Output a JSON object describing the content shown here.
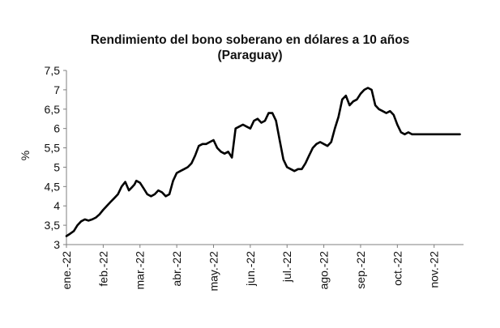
{
  "chart_data": {
    "type": "line",
    "title_line1": "Rendimiento del bono soberano en dólares a 10 años",
    "title_line2": "(Paraguay)",
    "ylabel": "%",
    "ylim": [
      3,
      7.5
    ],
    "yticks": [
      "3",
      "3,5",
      "4",
      "4,5",
      "5",
      "5,5",
      "6",
      "6,5",
      "7",
      "7,5"
    ],
    "xticks": [
      "ene.-22",
      "feb.-22",
      "mar.-22",
      "abr.-22",
      "may.-22",
      "jun.-22",
      "jul.-22",
      "ago.-22",
      "sep.-22",
      "oct.-22",
      "nov.-22"
    ],
    "line_color": "#000000",
    "series": [
      {
        "x": [
          0,
          0.1,
          0.2,
          0.3,
          0.4,
          0.5,
          0.6,
          0.7,
          0.8,
          0.9,
          1.0,
          1.1,
          1.2,
          1.3,
          1.4,
          1.5,
          1.6,
          1.7,
          1.8,
          1.85,
          1.9,
          2.0,
          2.1,
          2.2,
          2.3,
          2.4,
          2.5,
          2.6,
          2.7,
          2.8,
          2.9,
          3.0,
          3.1,
          3.2,
          3.3,
          3.4,
          3.5,
          3.6,
          3.7,
          3.8,
          3.9,
          4.0,
          4.1,
          4.2,
          4.3,
          4.4,
          4.5,
          4.6,
          4.7,
          4.8,
          4.9,
          5.0,
          5.1,
          5.2,
          5.3,
          5.4,
          5.5,
          5.6,
          5.7,
          5.8,
          5.9,
          6.0,
          6.1,
          6.2,
          6.3,
          6.4,
          6.5,
          6.6,
          6.7,
          6.8,
          6.9,
          7.0,
          7.1,
          7.2,
          7.3,
          7.4,
          7.5,
          7.6,
          7.7,
          7.8,
          7.9,
          8.0,
          8.1,
          8.2,
          8.3,
          8.4,
          8.5,
          8.6,
          8.7,
          8.8,
          8.9,
          9.0,
          9.1,
          9.2,
          9.3,
          9.4,
          9.5,
          9.6,
          9.7,
          9.8,
          9.9,
          10.0,
          10.1,
          10.2,
          10.3,
          10.4,
          10.5,
          10.6,
          10.7
        ],
        "values": [
          3.22,
          3.28,
          3.35,
          3.5,
          3.6,
          3.65,
          3.62,
          3.65,
          3.7,
          3.78,
          3.9,
          4.0,
          4.1,
          4.2,
          4.3,
          4.5,
          4.62,
          4.4,
          4.5,
          4.55,
          4.65,
          4.6,
          4.45,
          4.3,
          4.25,
          4.3,
          4.4,
          4.35,
          4.25,
          4.3,
          4.65,
          4.85,
          4.9,
          4.95,
          5.0,
          5.1,
          5.3,
          5.55,
          5.6,
          5.6,
          5.65,
          5.7,
          5.5,
          5.4,
          5.35,
          5.4,
          5.25,
          6.0,
          6.05,
          6.1,
          6.05,
          6.0,
          6.2,
          6.25,
          6.15,
          6.2,
          6.4,
          6.4,
          6.2,
          5.7,
          5.2,
          5.0,
          4.95,
          4.9,
          4.95,
          4.95,
          5.1,
          5.3,
          5.5,
          5.6,
          5.65,
          5.6,
          5.55,
          5.65,
          6.0,
          6.3,
          6.75,
          6.85,
          6.6,
          6.7,
          6.75,
          6.9,
          7.0,
          7.05,
          7.0,
          6.6,
          6.5,
          6.45,
          6.4,
          6.45,
          6.35,
          6.1,
          5.9,
          5.85,
          5.9,
          5.85,
          5.85,
          5.85,
          5.85,
          5.85,
          5.85,
          5.85,
          5.85,
          5.85,
          5.85,
          5.85,
          5.85,
          5.85,
          5.85
        ]
      }
    ]
  }
}
